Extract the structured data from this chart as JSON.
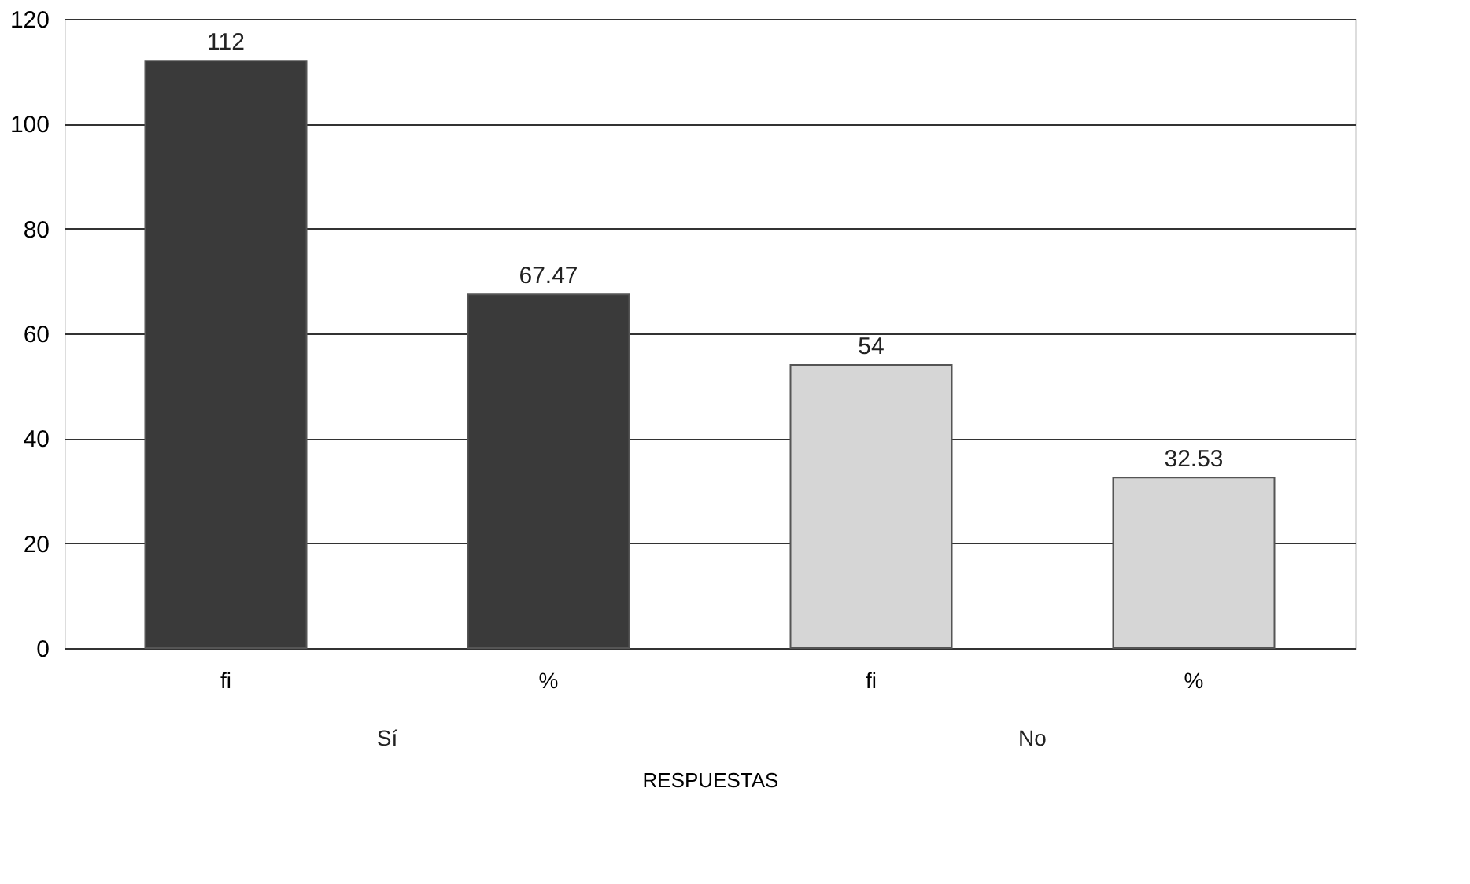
{
  "chart_data": {
    "type": "bar",
    "categories": [
      "fi",
      "%",
      "fi",
      "%"
    ],
    "values": [
      112,
      67.47,
      54,
      32.53
    ],
    "colors": [
      "#3a3a3a",
      "#3a3a3a",
      "#d6d6d6",
      "#d6d6d6"
    ],
    "xlabel": "RESPUESTAS",
    "annotations": [
      "Sí",
      "No"
    ],
    "ylim": [
      0,
      120
    ],
    "yticks": [
      0,
      20,
      40,
      60,
      80,
      100,
      120
    ],
    "grid": "y",
    "data_labels": true
  }
}
